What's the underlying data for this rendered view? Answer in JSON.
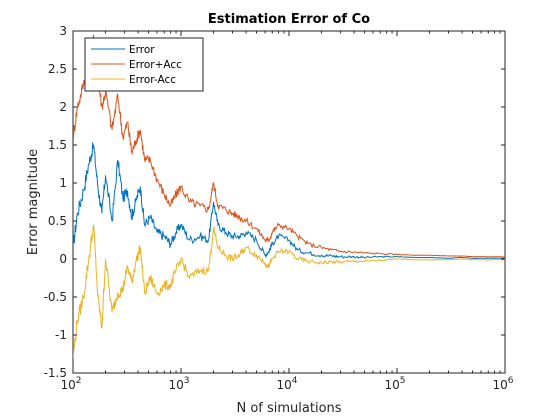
{
  "chart_data": {
    "type": "line",
    "title": "Estimation Error of Co",
    "xlabel": "N of simulations",
    "ylabel": "Error magnitude",
    "xscale": "log",
    "xlim": [
      100,
      1000000
    ],
    "ylim": [
      -1.5,
      3
    ],
    "xtick_labels": [
      {
        "base": "10",
        "exp": "2"
      },
      {
        "base": "10",
        "exp": "3"
      },
      {
        "base": "10",
        "exp": "4"
      },
      {
        "base": "10",
        "exp": "5"
      },
      {
        "base": "10",
        "exp": "6"
      }
    ],
    "ytick_labels": [
      "3",
      "2.5",
      "2",
      "1.5",
      "1",
      "0.5",
      "0",
      "-0.5",
      "-1",
      "-1.5"
    ],
    "grid": false,
    "legend": "top-left",
    "series": [
      {
        "name": "Error",
        "color": "#0072BD",
        "x": [
          100,
          110,
          125,
          140,
          155,
          170,
          185,
          200,
          230,
          260,
          290,
          320,
          350,
          380,
          420,
          460,
          520,
          600,
          700,
          800,
          900,
          1000,
          1200,
          1500,
          1800,
          2000,
          2200,
          2600,
          3000,
          3500,
          4000,
          5000,
          6000,
          6500,
          7000,
          8000,
          10000,
          12000,
          15000,
          20000,
          25000,
          30000,
          40000,
          50000,
          70000,
          100000,
          150000,
          200000,
          300000,
          400000,
          500000,
          700000,
          1000000
        ],
        "y": [
          0.15,
          0.6,
          0.9,
          1.25,
          1.5,
          0.95,
          0.6,
          1.1,
          0.5,
          1.3,
          0.8,
          0.9,
          0.55,
          0.75,
          0.95,
          0.45,
          0.55,
          0.35,
          0.3,
          0.2,
          0.35,
          0.45,
          0.25,
          0.3,
          0.25,
          0.75,
          0.45,
          0.35,
          0.3,
          0.3,
          0.35,
          0.25,
          0.05,
          0.1,
          0.2,
          0.3,
          0.25,
          0.12,
          0.08,
          0.05,
          0.04,
          0.03,
          0.03,
          0.02,
          0.03,
          0.03,
          0.02,
          0.02,
          0.01,
          0.02,
          0.01,
          0.01,
          0.01
        ]
      },
      {
        "name": "Error+Acc",
        "color": "#D95319",
        "x": [
          100,
          110,
          125,
          140,
          155,
          170,
          185,
          200,
          230,
          260,
          290,
          320,
          350,
          380,
          420,
          460,
          520,
          600,
          700,
          800,
          900,
          1000,
          1200,
          1500,
          1800,
          2000,
          2200,
          2600,
          3000,
          3500,
          4000,
          5000,
          6000,
          6500,
          7000,
          8000,
          10000,
          12000,
          15000,
          20000,
          25000,
          30000,
          40000,
          50000,
          70000,
          100000,
          150000,
          200000,
          300000,
          400000,
          500000,
          700000,
          1000000
        ],
        "y": [
          1.6,
          2.0,
          2.3,
          2.5,
          2.95,
          2.4,
          2.0,
          2.2,
          1.7,
          2.15,
          1.6,
          1.8,
          1.4,
          1.55,
          1.7,
          1.3,
          1.3,
          1.05,
          0.85,
          0.7,
          0.85,
          0.95,
          0.75,
          0.7,
          0.65,
          1.0,
          0.7,
          0.65,
          0.6,
          0.55,
          0.5,
          0.4,
          0.25,
          0.25,
          0.35,
          0.45,
          0.4,
          0.3,
          0.2,
          0.15,
          0.12,
          0.1,
          0.09,
          0.08,
          0.07,
          0.06,
          0.05,
          0.05,
          0.04,
          0.04,
          0.03,
          0.03,
          0.03
        ]
      },
      {
        "name": "Error-Acc",
        "color": "#EDB120",
        "x": [
          100,
          110,
          125,
          140,
          155,
          170,
          185,
          200,
          230,
          260,
          290,
          320,
          350,
          380,
          420,
          460,
          520,
          600,
          700,
          800,
          900,
          1000,
          1200,
          1500,
          1800,
          2000,
          2200,
          2600,
          3000,
          3500,
          4000,
          5000,
          6000,
          6500,
          7000,
          8000,
          10000,
          12000,
          15000,
          20000,
          25000,
          30000,
          40000,
          50000,
          70000,
          100000,
          150000,
          200000,
          300000,
          400000,
          500000,
          700000,
          1000000
        ],
        "y": [
          -1.3,
          -0.8,
          -0.5,
          0.0,
          0.45,
          -0.5,
          -0.9,
          0.0,
          -0.7,
          -0.45,
          -0.4,
          -0.1,
          -0.3,
          -0.05,
          0.15,
          -0.45,
          -0.25,
          -0.45,
          -0.35,
          -0.35,
          -0.15,
          0.0,
          -0.25,
          -0.15,
          -0.15,
          0.4,
          0.15,
          0.05,
          0.0,
          0.05,
          0.15,
          0.05,
          -0.05,
          -0.1,
          0.0,
          0.1,
          0.1,
          0.0,
          -0.03,
          -0.05,
          -0.04,
          -0.04,
          -0.03,
          -0.03,
          -0.02,
          0.0,
          -0.01,
          -0.01,
          -0.01,
          0.0,
          -0.01,
          -0.01,
          -0.01
        ]
      }
    ]
  }
}
